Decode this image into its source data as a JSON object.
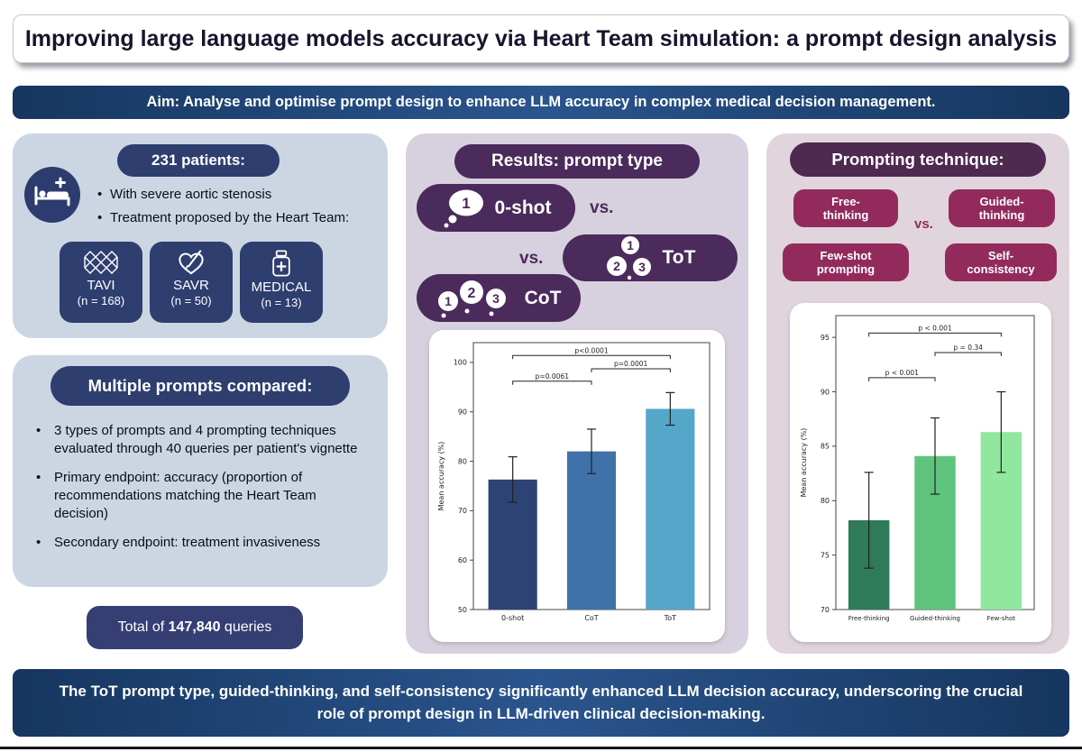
{
  "title": "Improving large language models accuracy via Heart Team simulation: a prompt design analysis",
  "aim": "Aim: Analyse and optimise prompt design to enhance LLM accuracy in complex medical decision management.",
  "patients": {
    "header": "231 patients:",
    "bullet1": "With severe aortic stenosis",
    "bullet2": "Treatment proposed by the Heart Team:",
    "treatments": [
      {
        "name": "TAVI",
        "n": "(n = 168)",
        "icon": "stent-icon"
      },
      {
        "name": "SAVR",
        "n": "(n = 50)",
        "icon": "heart-scalpel-icon"
      },
      {
        "name": "MEDICAL",
        "n": "(n = 13)",
        "icon": "medicine-bottle-icon"
      }
    ]
  },
  "prompts": {
    "header": "Multiple prompts compared:",
    "bullet1": "3 types of prompts and 4 prompting techniques evaluated through 40 queries per patient's vignette",
    "bullet2": "Primary endpoint: accuracy (proportion of recommendations matching the Heart Team decision)",
    "bullet3": "Secondary endpoint: treatment invasiveness"
  },
  "total": {
    "prefix": "Total of ",
    "number": "147,840",
    "suffix": " queries"
  },
  "results": {
    "header": "Results: prompt type",
    "vs1": "vs.",
    "vs2": "vs.",
    "zero_shot": {
      "label": "0-shot",
      "bubble": "1"
    },
    "tot": {
      "label": "ToT",
      "b1": "1",
      "b2": "2",
      "b3": "3"
    },
    "cot": {
      "label": "CoT",
      "b1": "1",
      "b2": "2",
      "b3": "3"
    }
  },
  "prompting": {
    "header": "Prompting technique:",
    "vs": "vs.",
    "techniques": [
      {
        "line1": "Free-",
        "line2": "thinking"
      },
      {
        "line1": "Guided-",
        "line2": "thinking"
      },
      {
        "line1": "Few-shot",
        "line2": "prompting"
      },
      {
        "line1": "Self-",
        "line2": "consistency"
      }
    ]
  },
  "conclusion": "The ToT prompt type, guided-thinking, and self-consistency significantly enhanced LLM decision accuracy, underscoring the crucial role of prompt design in LLM-driven clinical decision-making.",
  "colors": {
    "navy": "#2e3e6f",
    "purple": "#4b2a5c",
    "magenta": "#922b5c",
    "banner_navy": "#16365f",
    "left_panel_bg": "#ccd6e3",
    "mid_panel_bg": "#d7d1df",
    "right_panel_bg": "#e1d5dd"
  },
  "chart_data": [
    {
      "type": "bar",
      "title": "",
      "categories": [
        "0-shot",
        "CoT",
        "ToT"
      ],
      "values": [
        76.3,
        82.0,
        90.6
      ],
      "errors": [
        4.6,
        4.5,
        3.3
      ],
      "bar_colors": [
        "#2d4373",
        "#3f72a8",
        "#54a7c8"
      ],
      "xlabel": "",
      "ylabel": "Mean accuracy (%)",
      "ylim": [
        50,
        104
      ],
      "yticks": [
        50,
        60,
        70,
        80,
        90,
        100
      ],
      "grid": false,
      "significance": [
        {
          "from": 0,
          "to": 1,
          "label": "p=0.0061",
          "y": 96.2
        },
        {
          "from": 1,
          "to": 2,
          "label": "p=0.0001",
          "y": 98.7
        },
        {
          "from": 0,
          "to": 2,
          "label": "p<0.0001",
          "y": 101.4
        }
      ]
    },
    {
      "type": "bar",
      "title": "",
      "categories": [
        "Free-thinking",
        "Guided-thinking",
        "Few-shot"
      ],
      "values": [
        78.2,
        84.1,
        86.3
      ],
      "errors": [
        4.4,
        3.5,
        3.7
      ],
      "bar_colors": [
        "#2f7a58",
        "#5ec47d",
        "#90e79e"
      ],
      "xlabel": "",
      "ylabel": "Mean accuracy (%)",
      "ylim": [
        70,
        97
      ],
      "yticks": [
        70,
        75,
        80,
        85,
        90,
        95
      ],
      "grid": false,
      "significance": [
        {
          "from": 0,
          "to": 1,
          "label": "p < 0.001",
          "y": 91.3
        },
        {
          "from": 1,
          "to": 2,
          "label": "p = 0.34",
          "y": 93.6
        },
        {
          "from": 0,
          "to": 2,
          "label": "p < 0.001",
          "y": 95.4
        }
      ]
    }
  ]
}
